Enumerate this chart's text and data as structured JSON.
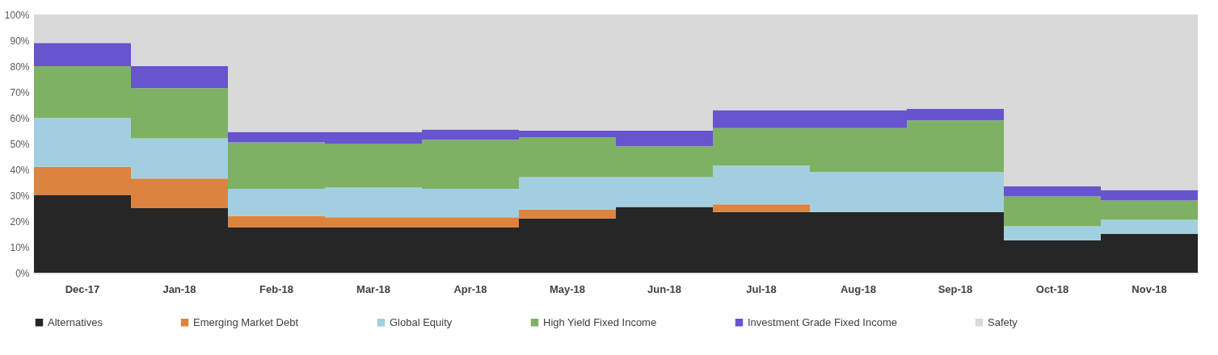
{
  "chart_data": {
    "type": "bar",
    "stacked": true,
    "categories": [
      "Dec-17",
      "Jan-18",
      "Feb-18",
      "Mar-18",
      "Apr-18",
      "May-18",
      "Jun-18",
      "Jul-18",
      "Aug-18",
      "Sep-18",
      "Oct-18",
      "Nov-18"
    ],
    "series": [
      {
        "name": "Alternatives",
        "color": "#262626",
        "values": [
          30,
          25,
          17.5,
          17.5,
          17.5,
          21,
          25.5,
          23.5,
          23.5,
          23.5,
          12.5,
          15
        ]
      },
      {
        "name": "Emerging Market Debt",
        "color": "#dc843f",
        "values": [
          11,
          11.5,
          4.5,
          4,
          4,
          3.5,
          0,
          3,
          0,
          0,
          0,
          0
        ]
      },
      {
        "name": "Global Equity",
        "color": "#a2cfe0",
        "values": [
          19,
          15.5,
          10.5,
          11.5,
          11,
          12.5,
          11.5,
          15,
          15.5,
          15.5,
          5.5,
          5.5
        ]
      },
      {
        "name": "High Yield Fixed Income",
        "color": "#7eb163",
        "values": [
          20,
          19.5,
          18,
          17,
          19,
          15.5,
          12,
          14.5,
          17,
          20,
          11.5,
          7.5
        ]
      },
      {
        "name": "Investment Grade Fixed Income",
        "color": "#6754cf",
        "values": [
          9,
          8.5,
          4,
          4.5,
          4,
          2.5,
          6,
          7,
          7,
          4.5,
          4,
          4
        ]
      },
      {
        "name": "Safety",
        "color": "#d9d9d9",
        "values": [
          11,
          20,
          45.5,
          45.5,
          44.5,
          45,
          45,
          37,
          37,
          36.5,
          66.5,
          68
        ]
      }
    ],
    "ylim": [
      0,
      100
    ],
    "yticks": [
      {
        "value": 0,
        "label": "0%"
      },
      {
        "value": 10,
        "label": "10%"
      },
      {
        "value": 20,
        "label": "20%"
      },
      {
        "value": 30,
        "label": "30%"
      },
      {
        "value": 40,
        "label": "40%"
      },
      {
        "value": 50,
        "label": "50%"
      },
      {
        "value": 60,
        "label": "60%"
      },
      {
        "value": 70,
        "label": "70%"
      },
      {
        "value": 80,
        "label": "80%"
      },
      {
        "value": 90,
        "label": "90%"
      },
      {
        "value": 100,
        "label": "100%"
      }
    ],
    "grid": false,
    "legend": "bottom"
  }
}
